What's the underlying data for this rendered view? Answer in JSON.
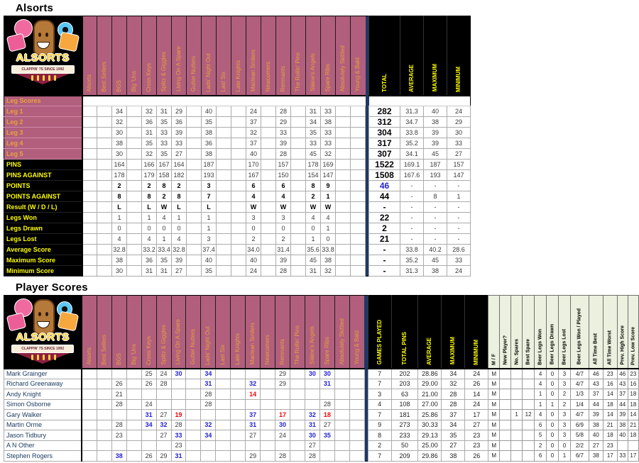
{
  "titles": {
    "leg": "Alsorts",
    "player": "Player Scores"
  },
  "logo": {
    "title": "ALSORTS",
    "tagline": "CLAPPIN' 7S SINCE 1992"
  },
  "colors": {
    "plum_header": "#B15F7D",
    "header_gold": "#E9A23C",
    "black_band": "#000000",
    "band_yellow": "#FFFF00",
    "navy_separator": "#1F3864",
    "blue_value": "#2222D8",
    "red_value": "#FF0000",
    "player_name_navy": "#17375D",
    "green_panel": "#EBF1DE"
  },
  "teams": [
    "Alsorts",
    "Best Sellers",
    "BGS",
    "Big 'Uns",
    "Cross Keys",
    "Splitz & Giggles",
    "Living On A Spare",
    "Gutter Nutters",
    "Lads' Night Out",
    "Last Six",
    "Late Knights",
    "Maclean Smilers",
    "Newcomers",
    "Remnants",
    "The Rollin' Pins",
    "Sláine's Angels",
    "Spare Ribs",
    "Absolutely Skittled",
    "Young & Bald"
  ],
  "leg_table": {
    "group_label": "Leg Scores",
    "summary_headers": [
      "TOTAL",
      "AVERAGE",
      "MAXIMUM",
      "MINIMUM"
    ],
    "rows": [
      {
        "label": "Leg 1",
        "style": "plum",
        "cells": [
          null,
          null,
          "34",
          null,
          "32",
          "31",
          "29",
          null,
          "40",
          null,
          null,
          "24",
          null,
          "28",
          null,
          "31",
          "33",
          null,
          null
        ],
        "summary": [
          "282",
          "31.3",
          "40",
          "24"
        ]
      },
      {
        "label": "Leg 2",
        "style": "plum",
        "cells": [
          null,
          null,
          "32",
          null,
          "36",
          "35",
          "36",
          null,
          "35",
          null,
          null,
          "37",
          null,
          "29",
          null,
          "34",
          "38",
          null,
          null
        ],
        "summary": [
          "312",
          "34.7",
          "38",
          "29"
        ]
      },
      {
        "label": "Leg 3",
        "style": "plum",
        "cells": [
          null,
          null,
          "30",
          null,
          "31",
          "33",
          "39",
          null,
          "38",
          null,
          null,
          "32",
          null,
          "33",
          null,
          "35",
          "33",
          null,
          null
        ],
        "summary": [
          "304",
          "33.8",
          "39",
          "30"
        ]
      },
      {
        "label": "Leg 4",
        "style": "plum",
        "cells": [
          null,
          null,
          "38",
          null,
          "35",
          "33",
          "33",
          null,
          "36",
          null,
          null,
          "37",
          null,
          "39",
          null,
          "33",
          "33",
          null,
          null
        ],
        "summary": [
          "317",
          "35.2",
          "39",
          "33"
        ]
      },
      {
        "label": "Leg 5",
        "style": "plum",
        "cells": [
          null,
          null,
          "30",
          null,
          "32",
          "35",
          "27",
          null,
          "38",
          null,
          null,
          "40",
          null,
          "28",
          null,
          "45",
          "32",
          null,
          null
        ],
        "summary": [
          "307",
          "34.1",
          "45",
          "27"
        ]
      },
      {
        "label": "PINS",
        "style": "black",
        "cells": [
          null,
          null,
          "164",
          null,
          "166",
          "167",
          "164",
          null,
          "187",
          null,
          null,
          "170",
          null,
          "157",
          null,
          "178",
          "169",
          null,
          null
        ],
        "summary": [
          "1522",
          "169.1",
          "187",
          "157"
        ]
      },
      {
        "label": "PINS AGAINST",
        "style": "black",
        "cells": [
          null,
          null,
          "178",
          null,
          "179",
          "158",
          "182",
          null,
          "193",
          null,
          null,
          "167",
          null,
          "150",
          null,
          "154",
          "147",
          null,
          null
        ],
        "summary": [
          "1508",
          "167.6",
          "193",
          "147"
        ]
      },
      {
        "label": "POINTS",
        "style": "black",
        "bold": true,
        "cells": [
          null,
          null,
          "*2",
          null,
          "*2",
          "*8",
          "*2",
          null,
          "*3",
          null,
          null,
          "*6",
          null,
          "*6",
          null,
          "*8",
          "*9",
          null,
          null
        ],
        "summary": [
          "*46",
          "-",
          "-",
          "-"
        ]
      },
      {
        "label": "POINTS AGAINST",
        "style": "black",
        "bold": true,
        "cells": [
          null,
          null,
          "8",
          null,
          "8",
          "2",
          "8",
          null,
          "7",
          null,
          null,
          "4",
          null,
          "4",
          null,
          "2",
          "1",
          null,
          null
        ],
        "summary": [
          "44",
          "-",
          "8",
          "1"
        ]
      },
      {
        "label": "Result (W / D / L)",
        "style": "black",
        "bold": true,
        "cells": [
          null,
          null,
          "L",
          null,
          "L",
          "W",
          "L",
          null,
          "L",
          null,
          null,
          "W",
          null,
          "W",
          null,
          "W",
          "W",
          null,
          null
        ],
        "summary": [
          "-",
          "-",
          "-",
          "-"
        ]
      },
      {
        "label": "Legs Won",
        "style": "black",
        "cells": [
          null,
          null,
          "1",
          null,
          "1",
          "4",
          "1",
          null,
          "1",
          null,
          null,
          "3",
          null,
          "3",
          null,
          "4",
          "4",
          null,
          null
        ],
        "summary": [
          "22",
          "-",
          "-",
          "-"
        ]
      },
      {
        "label": "Legs Drawn",
        "style": "black",
        "cells": [
          null,
          null,
          "0",
          null,
          "0",
          "0",
          "0",
          null,
          "1",
          null,
          null,
          "0",
          null,
          "0",
          null,
          "0",
          "1",
          null,
          null
        ],
        "summary": [
          "2",
          "-",
          "-",
          "-"
        ]
      },
      {
        "label": "Legs Lost",
        "style": "black",
        "cells": [
          null,
          null,
          "4",
          null,
          "4",
          "1",
          "4",
          null,
          "3",
          null,
          null,
          "2",
          null,
          "2",
          null,
          "1",
          "0",
          null,
          null
        ],
        "summary": [
          "21",
          "-",
          "-",
          "-"
        ]
      },
      {
        "label": "Average Score",
        "style": "black",
        "cells": [
          null,
          null,
          "32.8",
          null,
          "33.2",
          "33.4",
          "32.8",
          null,
          "37.4",
          null,
          null,
          "34.0",
          null,
          "31.4",
          null,
          "35.6",
          "33.8",
          null,
          null
        ],
        "summary": [
          "-",
          "33.8",
          "40.2",
          "28.6"
        ]
      },
      {
        "label": "Maximum Score",
        "style": "black",
        "cells": [
          null,
          null,
          "38",
          null,
          "36",
          "35",
          "39",
          null,
          "40",
          null,
          null,
          "40",
          null,
          "39",
          null,
          "45",
          "38",
          null,
          null
        ],
        "summary": [
          "-",
          "35.2",
          "45",
          "33"
        ]
      },
      {
        "label": "Minimum Score",
        "style": "black",
        "cells": [
          null,
          null,
          "30",
          null,
          "31",
          "31",
          "27",
          null,
          "35",
          null,
          null,
          "24",
          null,
          "28",
          null,
          "31",
          "32",
          null,
          null
        ],
        "summary": [
          "-",
          "31.3",
          "38",
          "24"
        ]
      }
    ]
  },
  "player_table": {
    "summary_headers": [
      "GAMES PLAYED",
      "TOTAL PINS",
      "AVERAGE",
      "MAXIMUM",
      "MINIMUM"
    ],
    "extra_headers": [
      "M / F",
      "New Player?",
      "No. Spares",
      "Best Spare",
      "Beer Legs Won",
      "Beer Legs Drawn",
      "Beer Legs Lost",
      "Beer Legs Won / Played",
      "All Time Best",
      "All Time Worst",
      "Prev. High Score",
      "Prev. Low Score"
    ],
    "rows": [
      {
        "name": "Mark Grainger",
        "cells": [
          null,
          null,
          null,
          null,
          "25",
          "24",
          "*30",
          null,
          "*34",
          null,
          null,
          null,
          null,
          "29",
          null,
          "*30",
          "*30",
          null,
          null
        ],
        "summary": [
          "7",
          "202",
          "28.86",
          "34",
          "24"
        ],
        "extra": [
          "M",
          "",
          "",
          "",
          "4",
          "0",
          "3",
          "4/7",
          "46",
          "23",
          "46",
          "23"
        ]
      },
      {
        "name": "Richard Greenaway",
        "cells": [
          null,
          null,
          "26",
          null,
          "26",
          "28",
          null,
          null,
          "*31",
          null,
          null,
          "*32",
          null,
          "29",
          null,
          null,
          "*31",
          null,
          null
        ],
        "summary": [
          "7",
          "203",
          "29.00",
          "32",
          "26"
        ],
        "extra": [
          "M",
          "",
          "",
          "",
          "4",
          "0",
          "3",
          "4/7",
          "43",
          "16",
          "43",
          "16"
        ]
      },
      {
        "name": "Andy Knight",
        "cells": [
          null,
          null,
          "21",
          null,
          null,
          null,
          null,
          null,
          "28",
          null,
          null,
          "!14",
          null,
          null,
          null,
          null,
          null,
          null,
          null
        ],
        "summary": [
          "3",
          "63",
          "21.00",
          "28",
          "14"
        ],
        "extra": [
          "M",
          "",
          "",
          "",
          "1",
          "0",
          "2",
          "1/3",
          "37",
          "14",
          "37",
          "18"
        ]
      },
      {
        "name": "Simon Osborne",
        "cells": [
          null,
          null,
          "28",
          null,
          "24",
          null,
          null,
          null,
          "28",
          null,
          null,
          null,
          null,
          null,
          null,
          null,
          "28",
          null,
          null
        ],
        "summary": [
          "4",
          "108",
          "27.00",
          "28",
          "24"
        ],
        "extra": [
          "M",
          "",
          "",
          "",
          "1",
          "1",
          "2",
          "1/4",
          "44",
          "18",
          "44",
          "18"
        ]
      },
      {
        "name": "Gary Walker",
        "cells": [
          null,
          null,
          null,
          null,
          "*31",
          "27",
          "!19",
          null,
          null,
          null,
          null,
          "*37",
          null,
          "!17",
          null,
          "*32",
          "!18",
          null,
          null
        ],
        "summary": [
          "7",
          "181",
          "25.86",
          "37",
          "17"
        ],
        "extra": [
          "M",
          "",
          "1",
          "12",
          "4",
          "0",
          "3",
          "4/7",
          "39",
          "14",
          "39",
          "14"
        ]
      },
      {
        "name": "Martin Orme",
        "cells": [
          null,
          null,
          "28",
          null,
          "*34",
          "*32",
          "28",
          null,
          "*32",
          null,
          null,
          "*31",
          null,
          "*30",
          null,
          "*31",
          "27",
          null,
          null
        ],
        "summary": [
          "9",
          "273",
          "30.33",
          "34",
          "27"
        ],
        "extra": [
          "M",
          "",
          "",
          "",
          "6",
          "0",
          "3",
          "6/9",
          "38",
          "21",
          "38",
          "21"
        ]
      },
      {
        "name": "Jason Tidbury",
        "cells": [
          null,
          null,
          "23",
          null,
          null,
          "27",
          "*33",
          null,
          "*34",
          null,
          null,
          "27",
          null,
          "24",
          null,
          "*30",
          "*35",
          null,
          null
        ],
        "summary": [
          "8",
          "233",
          "29.13",
          "35",
          "23"
        ],
        "extra": [
          "M",
          "",
          "",
          "",
          "5",
          "0",
          "3",
          "5/8",
          "40",
          "18",
          "40",
          "18"
        ]
      },
      {
        "name": "A N Other",
        "cells": [
          null,
          null,
          null,
          null,
          null,
          null,
          "23",
          null,
          null,
          null,
          null,
          null,
          null,
          null,
          null,
          "27",
          null,
          null,
          null
        ],
        "summary": [
          "2",
          "50",
          "25.00",
          "27",
          "23"
        ],
        "extra": [
          "M",
          "",
          "",
          "",
          "2",
          "0",
          "0",
          "2/2",
          "27",
          "23",
          "",
          ""
        ]
      },
      {
        "name": "Stephen Rogers",
        "cells": [
          null,
          null,
          "*38",
          null,
          "26",
          "29",
          "*31",
          null,
          null,
          null,
          null,
          "29",
          null,
          "28",
          null,
          "28",
          null,
          null,
          null
        ],
        "summary": [
          "7",
          "209",
          "29.86",
          "38",
          "26"
        ],
        "extra": [
          "M",
          "",
          "",
          "",
          "6",
          "0",
          "1",
          "6/7",
          "38",
          "17",
          "33",
          "17"
        ]
      }
    ]
  }
}
